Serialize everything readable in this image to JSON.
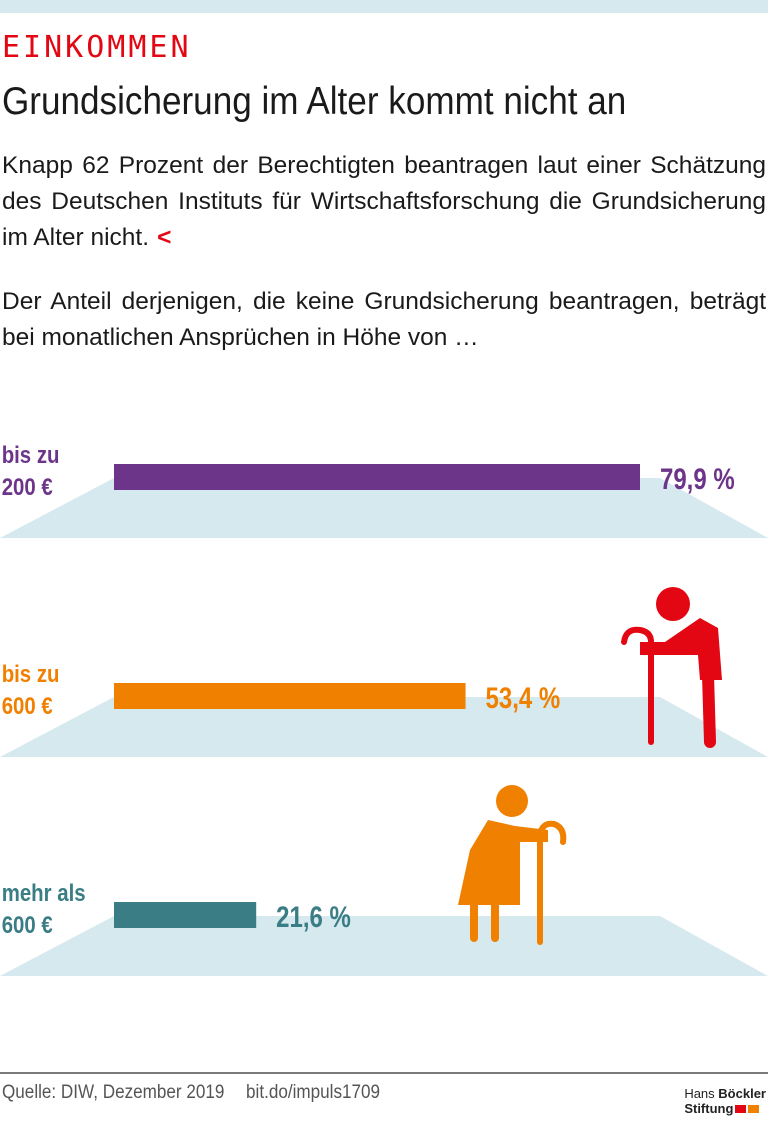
{
  "header": {
    "kicker": "EINKOMMEN",
    "title": "Grundsicherung im Alter kommt nicht an",
    "lead": "Knapp 62 Prozent der Berechtigten beantragen laut einer Schätzung des Deutschen Instituts für Wirtschaftsforschung die Grundsicherung im Alter nicht.",
    "lead_arrow": "<",
    "intro": "Der Anteil derjenigen, die keine Grundsicherung beantragen, beträgt bei monatlichen Ansprüchen in Höhe von …"
  },
  "chart_data": {
    "type": "bar",
    "orientation": "horizontal",
    "categories": [
      [
        "bis zu",
        "200 €"
      ],
      [
        "bis zu",
        "600 €"
      ],
      [
        "mehr als",
        "600 €"
      ]
    ],
    "values": [
      79.9,
      53.4,
      21.6
    ],
    "labels": [
      "79,9 %",
      "53,4 %",
      "21,6 %"
    ],
    "colors": [
      "#6c3589",
      "#f08000",
      "#3a7d85"
    ],
    "unit": "%"
  },
  "colors": {
    "platform": "#d5e9ee",
    "red": "#e30613",
    "orange": "#f08000"
  },
  "footer": {
    "source": "Quelle: DIW, Dezember 2019",
    "link": "bit.do/impuls1709",
    "logo_line1_a": "Hans",
    "logo_line1_b": "Böckler",
    "logo_line2": "Stiftung"
  }
}
